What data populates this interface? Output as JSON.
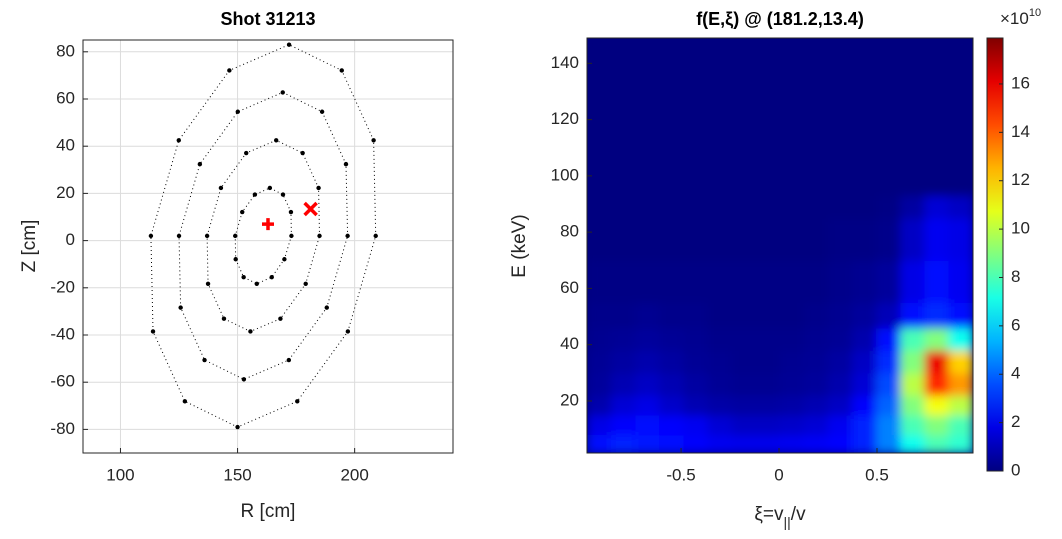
{
  "chart_data": [
    {
      "type": "scatter",
      "title": "Shot 31213",
      "xlabel": "R [cm]",
      "ylabel": "Z [cm]",
      "xlim": [
        84,
        242
      ],
      "ylim": [
        -90,
        85
      ],
      "xticks": [
        100,
        150,
        200
      ],
      "yticks": [
        -80,
        -60,
        -40,
        -20,
        0,
        20,
        40,
        60,
        80
      ],
      "grid": true,
      "color": "#000000",
      "surfaces": [
        {
          "x": [
            173,
            172.8,
            169.4,
            163.8,
            157.4,
            152,
            149,
            149.2,
            152.6,
            158.2,
            164.6,
            170
          ],
          "y": [
            2,
            12.1,
            19.5,
            22.3,
            19.5,
            12.1,
            2,
            -7.9,
            -15.5,
            -18.3,
            -15.5,
            -7.9
          ]
        },
        {
          "x": [
            185,
            184.6,
            177.8,
            166.5,
            153.7,
            142.9,
            137,
            137.4,
            144.2,
            155.5,
            168.3,
            179.1
          ],
          "y": [
            2,
            22.3,
            37.1,
            42.5,
            37.1,
            22.3,
            2,
            -18.3,
            -33.1,
            -38.5,
            -33.1,
            -18.3
          ]
        },
        {
          "x": [
            197,
            196.3,
            186.1,
            169.3,
            150.1,
            133.9,
            125,
            125.7,
            135.9,
            152.7,
            171.9,
            188.1
          ],
          "y": [
            2,
            32.4,
            54.6,
            62.8,
            54.6,
            32.4,
            2,
            -28.4,
            -50.6,
            -58.8,
            -50.6,
            -28.4
          ]
        },
        {
          "x": [
            209,
            208.1,
            194.5,
            172,
            146.5,
            124.9,
            113,
            113.9,
            127.5,
            150,
            175.5,
            197.1
          ],
          "y": [
            2,
            42.5,
            72.1,
            83,
            72.1,
            42.5,
            2,
            -38.5,
            -68.1,
            -79,
            -68.1,
            -38.5
          ]
        }
      ],
      "markers": [
        {
          "x": 163,
          "y": 7,
          "marker": "+",
          "color": "#ff0000"
        },
        {
          "x": 181.2,
          "y": 13.4,
          "marker": "x",
          "color": "#ff0000"
        }
      ]
    },
    {
      "type": "heatmap",
      "title": "f(E,ξ) @ (181.2,13.4)",
      "xlabel_parts": [
        "ξ=v",
        "||",
        "/v"
      ],
      "ylabel": "E (keV)",
      "xlim": [
        -0.98,
        0.99
      ],
      "ylim": [
        1.5,
        149
      ],
      "xticks": [
        -0.5,
        0,
        0.5
      ],
      "yticks": [
        20,
        40,
        60,
        80,
        100,
        120,
        140
      ],
      "colormap": "jet",
      "clim": [
        0,
        17.9
      ],
      "cticks": [
        0,
        2,
        4,
        6,
        8,
        10,
        12,
        14,
        16
      ],
      "cexponent_parts": [
        "×10",
        "10"
      ],
      "xedges": [
        -0.98,
        -0.857,
        -0.734,
        -0.611,
        -0.488,
        -0.365,
        -0.242,
        -0.119,
        0.004,
        0.127,
        0.25,
        0.373,
        0.496,
        0.619,
        0.742,
        0.865,
        0.99
      ],
      "yedges": [
        1.5,
        8,
        15,
        22,
        30,
        38,
        46,
        55,
        70,
        85,
        93,
        120,
        149
      ],
      "z": [
        [
          2.5,
          2.8,
          2.6,
          2.4,
          2.2,
          2.0,
          1.9,
          1.9,
          2.0,
          2.1,
          2.3,
          2.8,
          4.5,
          7,
          8,
          7.5
        ],
        [
          1.8,
          2.2,
          2.4,
          2.2,
          2.0,
          1.5,
          1.2,
          1.2,
          1.3,
          1.5,
          2.0,
          2.8,
          4.5,
          8,
          9,
          8
        ],
        [
          0.8,
          1.5,
          1.8,
          1.3,
          0.9,
          0.7,
          0.6,
          0.6,
          0.7,
          0.9,
          1.2,
          2.2,
          4,
          9,
          11,
          10
        ],
        [
          0.5,
          0.9,
          1.2,
          0.9,
          0.6,
          0.4,
          0.3,
          0.3,
          0.4,
          0.5,
          0.8,
          1.5,
          3.5,
          10,
          15,
          13
        ],
        [
          0.4,
          0.6,
          0.8,
          0.6,
          0.4,
          0.3,
          0.2,
          0.2,
          0.3,
          0.4,
          0.6,
          1.2,
          3,
          9,
          16,
          12
        ],
        [
          0.3,
          0.4,
          0.5,
          0.4,
          0.3,
          0.2,
          0.2,
          0.2,
          0.2,
          0.3,
          0.4,
          0.8,
          2.5,
          8,
          9,
          7
        ],
        [
          0.2,
          0.2,
          0.3,
          0.2,
          0.2,
          0.1,
          0.1,
          0.1,
          0.1,
          0.2,
          0.3,
          0.5,
          1,
          2.5,
          3,
          2.5
        ],
        [
          0.1,
          0.1,
          0.1,
          0.1,
          0.1,
          0.1,
          0.1,
          0.1,
          0.1,
          0.1,
          0.2,
          0.3,
          0.5,
          1.8,
          2.5,
          2
        ],
        [
          0,
          0,
          0,
          0,
          0,
          0,
          0,
          0,
          0,
          0,
          0.1,
          0.1,
          0.2,
          1.2,
          2,
          1.8
        ],
        [
          0,
          0,
          0,
          0,
          0,
          0,
          0,
          0,
          0,
          0,
          0,
          0,
          0.1,
          0.6,
          1.5,
          1.2
        ],
        [
          0,
          0,
          0,
          0,
          0,
          0,
          0,
          0,
          0,
          0,
          0,
          0,
          0,
          0,
          0,
          0
        ],
        [
          0,
          0,
          0,
          0,
          0,
          0,
          0,
          0,
          0,
          0,
          0,
          0,
          0,
          0,
          0,
          0
        ]
      ]
    }
  ]
}
